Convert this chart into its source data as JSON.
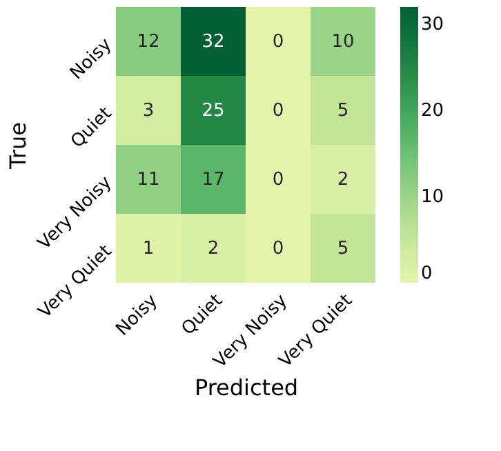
{
  "chart_data": {
    "type": "heatmap",
    "xlabel": "Predicted",
    "ylabel": "True",
    "categories": [
      "Noisy",
      "Quiet",
      "Very Noisy",
      "Very Quiet"
    ],
    "y_categories": [
      "Noisy",
      "Quiet",
      "Very Noisy",
      "Very Quiet"
    ],
    "cells": [
      [
        12,
        32,
        0,
        10
      ],
      [
        3,
        25,
        0,
        5
      ],
      [
        11,
        17,
        0,
        2
      ],
      [
        1,
        2,
        0,
        5
      ]
    ],
    "clim": [
      0,
      32
    ],
    "cticks": [
      0,
      10,
      20,
      30
    ],
    "data_labels": true
  }
}
